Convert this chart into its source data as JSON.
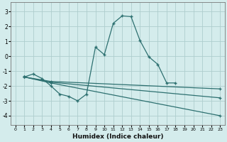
{
  "xlabel": "Humidex (Indice chaleur)",
  "bg_color": "#d4ecec",
  "line_color": "#2d7070",
  "grid_color": "#aecece",
  "xlim": [
    -0.5,
    23.5
  ],
  "ylim": [
    -4.6,
    3.6
  ],
  "yticks": [
    -4,
    -3,
    -2,
    -1,
    0,
    1,
    2,
    3
  ],
  "xticks": [
    0,
    1,
    2,
    3,
    4,
    5,
    6,
    7,
    8,
    9,
    10,
    11,
    12,
    13,
    14,
    15,
    16,
    17,
    18,
    19,
    20,
    21,
    22,
    23
  ],
  "series": [
    {
      "x": [
        1,
        2,
        3,
        4,
        5,
        6,
        7,
        8,
        9,
        10,
        11,
        12,
        13,
        14,
        15,
        16,
        17,
        18
      ],
      "y": [
        -1.4,
        -1.2,
        -1.5,
        -2.0,
        -2.55,
        -2.7,
        -3.0,
        -2.55,
        0.6,
        0.1,
        2.2,
        2.7,
        2.65,
        1.05,
        -0.05,
        -0.55,
        -1.8,
        -1.8
      ]
    },
    {
      "x": [
        1,
        4,
        23
      ],
      "y": [
        -1.4,
        -1.7,
        -2.2
      ]
    },
    {
      "x": [
        1,
        4,
        23
      ],
      "y": [
        -1.4,
        -1.75,
        -2.8
      ]
    },
    {
      "x": [
        1,
        4,
        23
      ],
      "y": [
        -1.4,
        -1.8,
        -4.0
      ]
    }
  ]
}
